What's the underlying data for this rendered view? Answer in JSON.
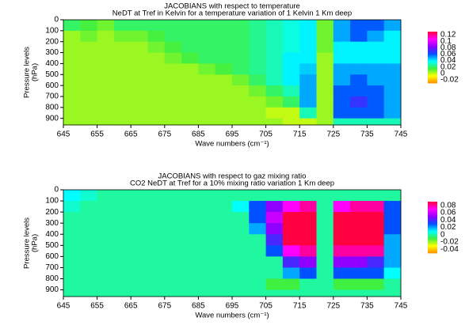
{
  "chart_data": [
    {
      "type": "heatmap",
      "title": "JACOBIANS with respect to temperature",
      "subtitle": "NeDT at Tref in Kelvin for a temperature variation of 1 Kelvin 1 Km deep",
      "xlabel": "Wave numbers (cm⁻¹)",
      "ylabel": [
        "Pressure levels",
        "(hPa)"
      ],
      "xbins": [
        645,
        650,
        655,
        660,
        665,
        670,
        675,
        680,
        685,
        690,
        695,
        700,
        705,
        710,
        715,
        720,
        725,
        730,
        735,
        740,
        745
      ],
      "ybins": [
        0,
        100,
        200,
        300,
        400,
        500,
        600,
        700,
        800,
        900,
        960
      ],
      "xlim": [
        645,
        745
      ],
      "ylim": [
        0,
        960
      ],
      "xticks": [
        645,
        655,
        665,
        675,
        685,
        695,
        705,
        715,
        725,
        735,
        745
      ],
      "yticks": [
        0,
        100,
        200,
        300,
        400,
        500,
        600,
        700,
        800,
        900
      ],
      "clim": [
        -0.03,
        0.13
      ],
      "cticks": [
        0.12,
        0.1,
        0.08,
        0.06,
        0.04,
        0.02,
        0,
        -0.02
      ],
      "colormap": [
        "#ff8c00",
        "#ffff00",
        "#40f040",
        "#00ffff",
        "#0050ff",
        "#9000ff",
        "#ff00ff",
        "#ff0040"
      ],
      "values": [
        [
          0.02,
          0.015,
          0.01,
          0.02,
          0.02,
          0.02,
          0.02,
          0.02,
          0.02,
          0.02,
          0.02,
          0.025,
          0.03,
          0.035,
          0.04,
          0.01,
          0.05,
          0.06,
          0.06,
          0.05
        ],
        [
          0.005,
          0.01,
          0.005,
          0.01,
          0.01,
          0.015,
          0.02,
          0.02,
          0.02,
          0.02,
          0.02,
          0.025,
          0.03,
          0.035,
          0.04,
          0.01,
          0.05,
          0.06,
          0.05,
          0.04
        ],
        [
          0.005,
          0.005,
          0.005,
          0.005,
          0.005,
          0.01,
          0.015,
          0.02,
          0.02,
          0.02,
          0.02,
          0.025,
          0.03,
          0.035,
          0.04,
          0.01,
          0.04,
          0.04,
          0.04,
          0.04
        ],
        [
          0.005,
          0.005,
          0.005,
          0.005,
          0.005,
          0.005,
          0.01,
          0.015,
          0.02,
          0.02,
          0.02,
          0.025,
          0.03,
          0.04,
          0.04,
          0.005,
          0.04,
          0.04,
          0.04,
          0.04
        ],
        [
          0.005,
          0.005,
          0.005,
          0.005,
          0.005,
          0.005,
          0.005,
          0.005,
          0.01,
          0.015,
          0.02,
          0.025,
          0.03,
          0.04,
          0.045,
          0.005,
          0.05,
          0.05,
          0.05,
          0.05
        ],
        [
          0.005,
          0.005,
          0.005,
          0.005,
          0.005,
          0.005,
          0.005,
          0.005,
          0.005,
          0.005,
          0.01,
          0.02,
          0.03,
          0.04,
          0.05,
          0.005,
          0.05,
          0.06,
          0.05,
          0.05
        ],
        [
          0.005,
          0.005,
          0.005,
          0.005,
          0.005,
          0.005,
          0.005,
          0.005,
          0.005,
          0.005,
          0.005,
          0.01,
          0.02,
          0.03,
          0.05,
          0.005,
          0.06,
          0.06,
          0.06,
          0.05
        ],
        [
          0.005,
          0.005,
          0.005,
          0.005,
          0.005,
          0.005,
          0.005,
          0.005,
          0.005,
          0.005,
          0.005,
          0.005,
          0.01,
          0.02,
          0.05,
          0.005,
          0.06,
          0.07,
          0.06,
          0.05
        ],
        [
          0.005,
          0.005,
          0.005,
          0.005,
          0.005,
          0.005,
          0.005,
          0.005,
          0.005,
          0.005,
          0.005,
          0.005,
          0,
          0,
          0.03,
          0.005,
          0.06,
          0.06,
          0.06,
          0.05
        ],
        [
          0.005,
          0.005,
          0.005,
          0.005,
          0.005,
          0.005,
          0.005,
          0.005,
          0.005,
          0.005,
          0.005,
          0.005,
          0.005,
          0,
          0,
          0.005,
          0.03,
          0.03,
          0.03,
          0.03
        ]
      ]
    },
    {
      "type": "heatmap",
      "title": "JACOBIANS with respect to gaz mixing ratio",
      "subtitle": "CO2 NeDT at Tref for a 10% mixing ratio variation 1 Km deep",
      "xlabel": "Wave numbers (cm⁻¹)",
      "ylabel": [
        "Pressure levels",
        "(hPa)"
      ],
      "xbins": [
        645,
        650,
        655,
        660,
        665,
        670,
        675,
        680,
        685,
        690,
        695,
        700,
        705,
        710,
        715,
        720,
        725,
        730,
        735,
        740,
        745
      ],
      "ybins": [
        0,
        100,
        200,
        300,
        400,
        500,
        600,
        700,
        800,
        900,
        960
      ],
      "xlim": [
        645,
        745
      ],
      "ylim": [
        0,
        960
      ],
      "xticks": [
        645,
        655,
        665,
        675,
        685,
        695,
        705,
        715,
        725,
        735,
        745
      ],
      "yticks": [
        0,
        100,
        200,
        300,
        400,
        500,
        600,
        700,
        800,
        900
      ],
      "clim": [
        -0.05,
        0.09
      ],
      "cticks": [
        0.08,
        0.06,
        0.04,
        0.02,
        0,
        -0.02,
        -0.04
      ],
      "colormap": [
        "#ff8c00",
        "#ffff00",
        "#40f040",
        "#00ffff",
        "#0050ff",
        "#9000ff",
        "#ff00ff",
        "#ff0040"
      ],
      "values": [
        [
          0.01,
          0.005,
          0,
          0,
          0,
          0,
          0,
          0,
          0,
          0,
          0,
          0,
          0,
          0,
          0,
          0,
          0,
          0,
          0,
          0
        ],
        [
          0.005,
          0,
          0,
          0,
          0,
          0,
          0,
          0,
          0,
          0,
          0.01,
          0.03,
          0.05,
          0.07,
          0.08,
          0,
          0.07,
          0.08,
          0.08,
          0.03
        ],
        [
          0,
          0,
          0,
          0,
          0,
          0,
          0,
          0,
          0,
          0,
          0,
          0.03,
          0.06,
          0.09,
          0.09,
          0,
          0.09,
          0.09,
          0.09,
          0.03
        ],
        [
          0,
          0,
          0,
          0,
          0,
          0,
          0,
          0,
          0,
          0,
          0,
          0.02,
          0.05,
          0.09,
          0.09,
          0,
          0.09,
          0.09,
          0.09,
          0.03
        ],
        [
          0,
          0,
          0,
          0,
          0,
          0,
          0,
          0,
          0,
          0,
          0,
          0,
          0.04,
          0.09,
          0.09,
          0,
          0.09,
          0.09,
          0.09,
          0.02
        ],
        [
          0,
          0,
          0,
          0,
          0,
          0,
          0,
          0,
          0,
          0,
          0,
          0,
          0.03,
          0.07,
          0.08,
          0,
          0.08,
          0.08,
          0.08,
          0.02
        ],
        [
          0,
          0,
          0,
          0,
          0,
          0,
          0,
          0,
          0,
          0,
          0,
          0,
          0,
          0.04,
          0.05,
          0,
          0.05,
          0.05,
          0.04,
          0.02
        ],
        [
          0,
          0,
          0,
          0,
          0,
          0,
          0,
          0,
          0,
          0,
          0,
          0,
          0,
          0.02,
          0.03,
          0,
          0.03,
          0.03,
          0.03,
          0.01
        ],
        [
          0,
          0,
          0,
          0,
          0,
          0,
          0,
          0,
          0,
          0,
          0,
          0,
          -0.01,
          -0.01,
          0,
          0,
          -0.01,
          -0.01,
          -0.01,
          0
        ],
        [
          0,
          0,
          0,
          0,
          0,
          0,
          0,
          0,
          0,
          0,
          0,
          0,
          0,
          0,
          0,
          0,
          0,
          0,
          0,
          0
        ]
      ]
    }
  ]
}
